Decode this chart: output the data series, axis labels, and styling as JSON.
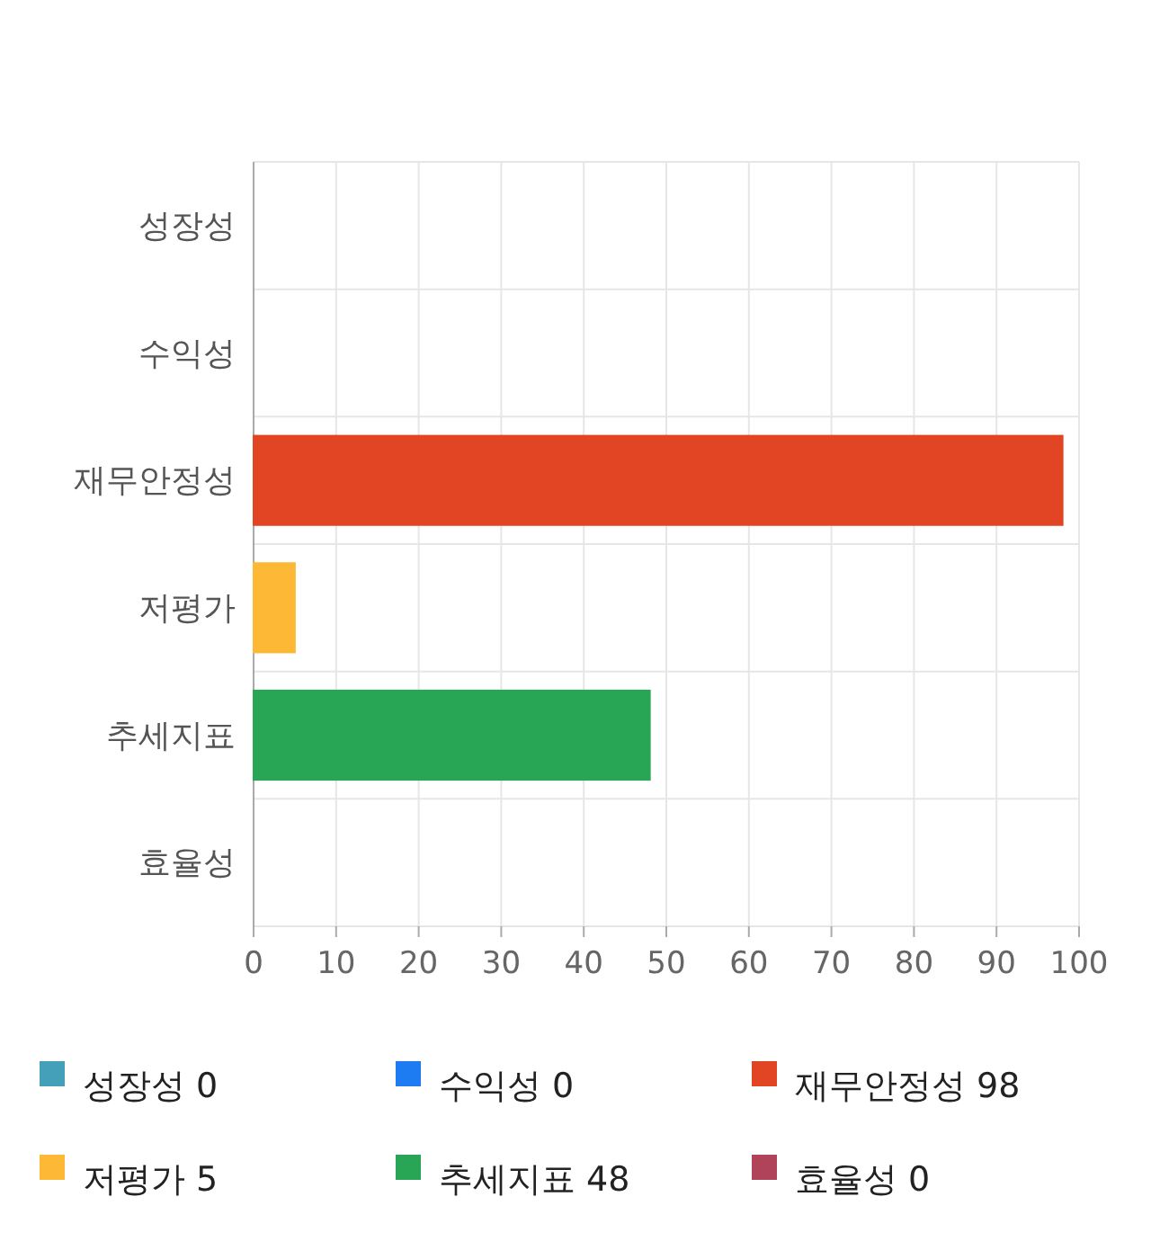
{
  "chart_data": {
    "type": "bar",
    "orientation": "horizontal",
    "stacked": true,
    "categories": [
      "성장성",
      "수익성",
      "재무안정성",
      "저평가",
      "추세지표",
      "효율성"
    ],
    "series": [
      {
        "name": "성장성 0",
        "color": "#44a0b8",
        "values": [
          0,
          null,
          null,
          null,
          null,
          null
        ]
      },
      {
        "name": "수익성 0",
        "color": "#1e7cf2",
        "values": [
          null,
          0,
          null,
          null,
          null,
          null
        ]
      },
      {
        "name": "재무안정성 98",
        "color": "#e24523",
        "values": [
          null,
          null,
          98,
          null,
          null,
          null
        ]
      },
      {
        "name": "저평가 5",
        "color": "#fdb836",
        "values": [
          null,
          null,
          null,
          5,
          null,
          null
        ]
      },
      {
        "name": "추세지표 48",
        "color": "#29a655",
        "values": [
          null,
          null,
          null,
          null,
          48,
          null
        ]
      },
      {
        "name": "효율성 0",
        "color": "#b0435a",
        "values": [
          null,
          null,
          null,
          null,
          null,
          0
        ]
      }
    ],
    "xlim": [
      0,
      100
    ],
    "xticks": [
      0,
      10,
      20,
      30,
      40,
      50,
      60,
      70,
      80,
      90,
      100
    ],
    "grid": true,
    "legend": "bottom"
  }
}
